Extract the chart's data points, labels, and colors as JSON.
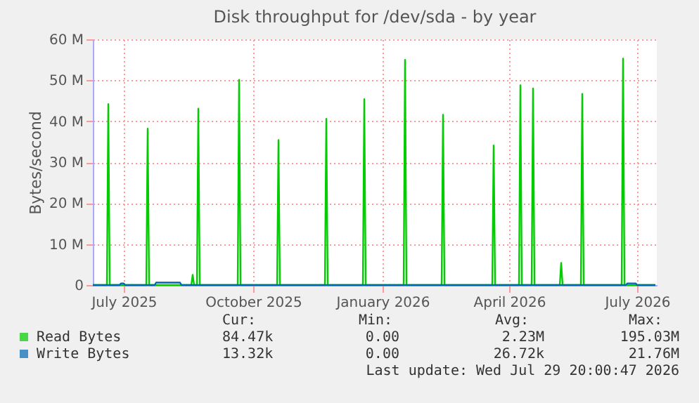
{
  "chart_data": {
    "type": "line",
    "title": "Disk throughput for /dev/sda - by year",
    "ylabel": "Bytes/second",
    "xlim": [
      "2025-06-24",
      "2026-07-30"
    ],
    "ylim": [
      0,
      60
    ],
    "xticks": [
      {
        "value": "2025-07-16",
        "label": "July 2025"
      },
      {
        "value": "2025-10-16",
        "label": "October 2025"
      },
      {
        "value": "2026-01-16",
        "label": "January 2026"
      },
      {
        "value": "2026-04-16",
        "label": "April 2026"
      },
      {
        "value": "2026-07-16",
        "label": "July 2026"
      }
    ],
    "yticks": [
      {
        "value": 0,
        "label": "0"
      },
      {
        "value": 10,
        "label": "10 M"
      },
      {
        "value": 20,
        "label": "20 M"
      },
      {
        "value": 30,
        "label": "30 M"
      },
      {
        "value": 40,
        "label": "40 M"
      },
      {
        "value": 50,
        "label": "50 M"
      },
      {
        "value": 60,
        "label": "60 M"
      }
    ],
    "grid": true,
    "legend": "bottom",
    "series": [
      {
        "name": "Read Bytes",
        "color": "#00cc00",
        "x": [
          "2025-06-24",
          "2025-07-04",
          "2025-07-05",
          "2025-07-06",
          "2025-08-01",
          "2025-08-02",
          "2025-08-03",
          "2025-09-02",
          "2025-09-03",
          "2025-09-04",
          "2025-09-06",
          "2025-09-07",
          "2025-09-08",
          "2025-10-05",
          "2025-10-06",
          "2025-10-07",
          "2025-11-02",
          "2025-11-03",
          "2025-11-04",
          "2025-12-06",
          "2025-12-07",
          "2025-12-08",
          "2026-01-02",
          "2026-01-03",
          "2026-01-04",
          "2026-01-31",
          "2026-02-01",
          "2026-02-02",
          "2026-02-27",
          "2026-02-28",
          "2026-03-01",
          "2026-04-04",
          "2026-04-05",
          "2026-04-06",
          "2026-04-23",
          "2026-04-24",
          "2026-04-25",
          "2026-05-02",
          "2026-05-03",
          "2026-05-04",
          "2026-05-22",
          "2026-05-23",
          "2026-05-24",
          "2026-06-06",
          "2026-06-07",
          "2026-06-08",
          "2026-07-05",
          "2026-07-06",
          "2026-07-07",
          "2026-07-29"
        ],
        "values": [
          0,
          0,
          44.2,
          0,
          0,
          38.2,
          0,
          0,
          2.5,
          0,
          0,
          43.1,
          0,
          0,
          50.1,
          0,
          0,
          35.4,
          0,
          0,
          40.6,
          0,
          0,
          45.4,
          0,
          0,
          55.0,
          0,
          0,
          41.6,
          0,
          0,
          34.1,
          0,
          0,
          48.8,
          0,
          0,
          48.0,
          0,
          0,
          5.4,
          0,
          0,
          46.7,
          0,
          0,
          55.3,
          0,
          0
        ]
      },
      {
        "name": "Write Bytes",
        "color": "#0066b3",
        "x": [
          "2025-06-24",
          "2025-07-13",
          "2025-07-14",
          "2025-07-16",
          "2025-07-17",
          "2025-08-07",
          "2025-08-08",
          "2025-08-25",
          "2025-08-26",
          "2026-07-08",
          "2026-07-09",
          "2026-07-15",
          "2026-07-16",
          "2026-07-29"
        ],
        "values": [
          0,
          0,
          0.4,
          0.4,
          0,
          0,
          0.6,
          0.6,
          0,
          0,
          0.4,
          0.4,
          0,
          0
        ]
      }
    ],
    "annotations": [
      "Cur:",
      "Min:",
      "Avg:",
      "Max:",
      "84.47k",
      "0.00",
      "2.23M",
      "195.03M",
      "13.32k",
      "0.00",
      "26.72k",
      "21.76M",
      "Last update: Wed Jul 29 20:00:47 2026"
    ]
  }
}
